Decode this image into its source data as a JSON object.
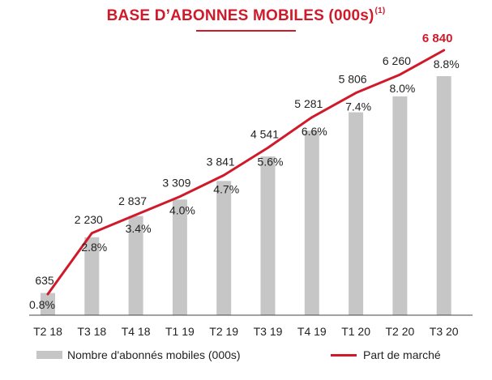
{
  "title": "BASE D’ABONNES MOBILES (000s)",
  "title_sup": "(1)",
  "colors": {
    "accent": "#d01a2a",
    "bar": "#c6c6c6",
    "text": "#222222"
  },
  "chart_data": {
    "type": "bar",
    "title": "BASE D’ABONNES MOBILES (000s)",
    "categories": [
      "T2 18",
      "T3 18",
      "T4 18",
      "T1 19",
      "T2 19",
      "T3 19",
      "T4 19",
      "T1 20",
      "T2 20",
      "T3 20"
    ],
    "series": [
      {
        "name": "Nombre d'abonnés mobiles (000s)",
        "type": "bar",
        "values": [
          635,
          2230,
          2837,
          3309,
          3841,
          4541,
          5281,
          5806,
          6260,
          6840
        ],
        "labels": [
          "635",
          "2 230",
          "2 837",
          "3 309",
          "3 841",
          "4 541",
          "5 281",
          "5 806",
          "6 260",
          "6 840"
        ]
      },
      {
        "name": "Part de marché",
        "type": "line",
        "values": [
          0.8,
          2.8,
          3.4,
          4.0,
          4.7,
          5.6,
          6.6,
          7.4,
          8.0,
          8.8
        ],
        "labels": [
          "0.8%",
          "2.8%",
          "3.4%",
          "4.0%",
          "4.7%",
          "5.6%",
          "6.6%",
          "7.4%",
          "8.0%",
          "8.8%"
        ]
      }
    ],
    "xlabel": "",
    "ylabel": "",
    "grid": false,
    "legend": "bottom"
  },
  "legend": {
    "bar_label": "Nombre d'abonnés mobiles (000s)",
    "line_label": "Part de marché"
  }
}
